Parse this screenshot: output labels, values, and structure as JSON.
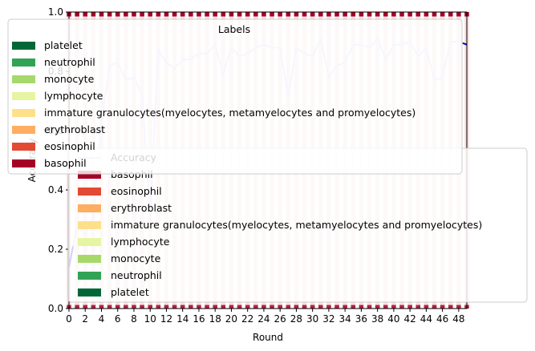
{
  "chart_data": {
    "type": "bar",
    "xlabel": "Round",
    "ylabel": "Accuracy",
    "ylim": [
      0,
      1
    ],
    "xlim": [
      0,
      49
    ],
    "x_ticks": [
      "0",
      "2",
      "4",
      "6",
      "8",
      "10",
      "12",
      "14",
      "16",
      "18",
      "20",
      "22",
      "24",
      "26",
      "28",
      "30",
      "32",
      "34",
      "36",
      "38",
      "40",
      "42",
      "44",
      "46",
      "48"
    ],
    "y_ticks": [
      "0.0",
      "0.2",
      "0.4",
      "0.6",
      "0.8",
      "1.0"
    ],
    "stacked_label_bars": {
      "note_categories": "per-round stacked label share, each round sums to 1.0",
      "series": [
        {
          "name": "platelet",
          "color": "#006837"
        },
        {
          "name": "neutrophil",
          "color": "#31a354"
        },
        {
          "name": "monocyte",
          "color": "#a6d96a"
        },
        {
          "name": "lymphocyte",
          "color": "#e6f5a1"
        },
        {
          "name": "immature granulocytes(myelocytes, metamyelocytes and promyelocytes)",
          "color": "#fee08b"
        },
        {
          "name": "erythroblast",
          "color": "#fdae61"
        },
        {
          "name": "eosinophil",
          "color": "#e34a33"
        },
        {
          "name": "basophil",
          "color": "#a50026"
        }
      ]
    },
    "accuracy_series": {
      "name": "Accuracy",
      "color": "#ccccff",
      "x": [
        0,
        1,
        2,
        3,
        4,
        5,
        6,
        7,
        8,
        9,
        10,
        11,
        12,
        13,
        14,
        15,
        16,
        17,
        18,
        19,
        20,
        21,
        22,
        23,
        24,
        25,
        26,
        27,
        28,
        29,
        30,
        31,
        32,
        33,
        34,
        35,
        36,
        37,
        38,
        39,
        40,
        41,
        42,
        43,
        44,
        45,
        46,
        47,
        48,
        49
      ],
      "values": [
        0.14,
        0.28,
        0.25,
        0.31,
        0.63,
        0.82,
        0.83,
        0.77,
        0.78,
        0.72,
        0.31,
        0.87,
        0.83,
        0.81,
        0.84,
        0.84,
        0.86,
        0.86,
        0.89,
        0.79,
        0.88,
        0.85,
        0.86,
        0.88,
        0.89,
        0.88,
        0.88,
        0.71,
        0.88,
        0.86,
        0.85,
        0.91,
        0.78,
        0.82,
        0.83,
        0.89,
        0.89,
        0.88,
        0.91,
        0.84,
        0.89,
        0.89,
        0.9,
        0.85,
        0.88,
        0.77,
        0.78,
        0.9,
        0.9,
        0.89
      ]
    },
    "legend_upper": {
      "title": "Labels",
      "entries": [
        "platelet",
        "neutrophil",
        "monocyte",
        "lymphocyte",
        "immature granulocytes(myelocytes, metamyelocytes and promyelocytes)",
        "erythroblast",
        "eosinophil",
        "basophil"
      ]
    },
    "legend_lower": {
      "entries": [
        "Accuracy",
        "basophil",
        "eosinophil",
        "erythroblast",
        "immature granulocytes(myelocytes, metamyelocytes and promyelocytes)",
        "lymphocyte",
        "monocyte",
        "neutrophil",
        "platelet"
      ]
    },
    "colors": {
      "platelet": "#006837",
      "neutrophil": "#31a354",
      "monocyte": "#a6d96a",
      "lymphocyte": "#e6f5a1",
      "immature granulocytes(myelocytes, metamyelocytes and promyelocytes)": "#fee08b",
      "erythroblast": "#fdae61",
      "eosinophil": "#e34a33",
      "basophil": "#a50026",
      "Accuracy": "#ccccff",
      "accent_line": "#0000cc"
    }
  }
}
